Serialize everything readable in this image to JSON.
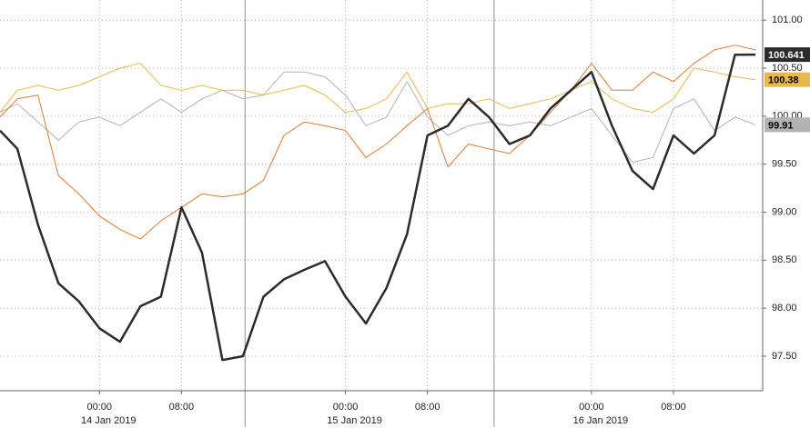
{
  "chart_data": {
    "type": "line",
    "x": [
      -9.7,
      -8,
      -6,
      -4,
      -2,
      0,
      2,
      4,
      6,
      8,
      10,
      12,
      14,
      16,
      18,
      20,
      22,
      24,
      26,
      28,
      30,
      32,
      34,
      36,
      38,
      40,
      42,
      44,
      46,
      48,
      50,
      52,
      54,
      56,
      58,
      60,
      62,
      64
    ],
    "xlim": [
      -9.7,
      64.7
    ],
    "xticks": [
      {
        "value": 0,
        "label": "00:00"
      },
      {
        "value": 8,
        "label": "08:00"
      },
      {
        "value": 24,
        "label": "00:00"
      },
      {
        "value": 32,
        "label": "08:00"
      },
      {
        "value": 48,
        "label": "00:00"
      },
      {
        "value": 56,
        "label": "08:00"
      }
    ],
    "date_ticks": [
      {
        "value": 0,
        "label": "14 Jan 2019"
      },
      {
        "value": 24,
        "label": "15 Jan 2019"
      },
      {
        "value": 48,
        "label": "16 Jan 2019"
      }
    ],
    "session_breaks": [
      14.2,
      38.5
    ],
    "ylim": [
      97.14,
      101.21
    ],
    "yticks": [
      {
        "value": 97.5,
        "label": "97.50"
      },
      {
        "value": 98,
        "label": "98.00"
      },
      {
        "value": 98.5,
        "label": "98.50"
      },
      {
        "value": 99,
        "label": "99.00"
      },
      {
        "value": 99.5,
        "label": "99.50"
      },
      {
        "value": 100,
        "label": "100.00"
      },
      {
        "value": 100.5,
        "label": "100.50"
      },
      {
        "value": 101,
        "label": "101.00"
      }
    ],
    "grid": true,
    "series": [
      {
        "color": "#b3b3b3",
        "width": 1,
        "last_label": "99.91",
        "label_text_color": "#000",
        "values": [
          100.04,
          100.13,
          99.94,
          99.75,
          99.94,
          99.99,
          99.9,
          100.04,
          100.18,
          100.04,
          100.18,
          100.27,
          100.18,
          100.22,
          100.46,
          100.46,
          100.41,
          100.22,
          99.9,
          99.99,
          100.36,
          99.99,
          99.8,
          99.9,
          99.94,
          99.9,
          99.94,
          99.9,
          99.99,
          100.08,
          99.8,
          99.52,
          99.57,
          100.08,
          100.18,
          99.85,
          99.99,
          99.91
        ]
      },
      {
        "color": "#e8b84a",
        "width": 1,
        "last_label": "100.38",
        "label_text_color": "#000",
        "values": [
          100.04,
          100.27,
          100.32,
          100.27,
          100.32,
          100.41,
          100.5,
          100.55,
          100.32,
          100.27,
          100.32,
          100.27,
          100.27,
          100.22,
          100.27,
          100.32,
          100.22,
          100.04,
          100.08,
          100.18,
          100.46,
          100.08,
          100.13,
          100.13,
          100.18,
          100.08,
          100.13,
          100.18,
          100.27,
          100.36,
          100.18,
          100.08,
          100.04,
          100.18,
          100.5,
          100.46,
          100.41,
          100.38
        ]
      },
      {
        "color": "#e07a2e",
        "width": 1,
        "values": [
          99.99,
          100.18,
          100.22,
          99.38,
          99.19,
          98.96,
          98.82,
          98.72,
          98.91,
          99.05,
          99.19,
          99.16,
          99.19,
          99.33,
          99.8,
          99.94,
          99.9,
          99.85,
          99.57,
          99.71,
          99.9,
          100.08,
          99.47,
          99.71,
          99.66,
          99.61,
          99.8,
          100.04,
          100.27,
          100.55,
          100.27,
          100.27,
          100.46,
          100.36,
          100.55,
          100.69,
          100.74,
          100.69
        ]
      },
      {
        "color": "#2b2b2b",
        "width": 2.5,
        "last_label": "100.641",
        "label_text_color": "#fff",
        "values": [
          99.85,
          99.66,
          98.87,
          98.26,
          98.07,
          97.79,
          97.65,
          98.02,
          98.12,
          99.05,
          98.58,
          97.46,
          97.5,
          98.12,
          98.3,
          98.4,
          98.49,
          98.12,
          97.84,
          98.21,
          98.77,
          99.8,
          99.9,
          100.18,
          99.99,
          99.71,
          99.8,
          100.08,
          100.27,
          100.46,
          99.9,
          99.43,
          99.24,
          99.8,
          99.61,
          99.8,
          100.64,
          100.641
        ]
      }
    ]
  }
}
